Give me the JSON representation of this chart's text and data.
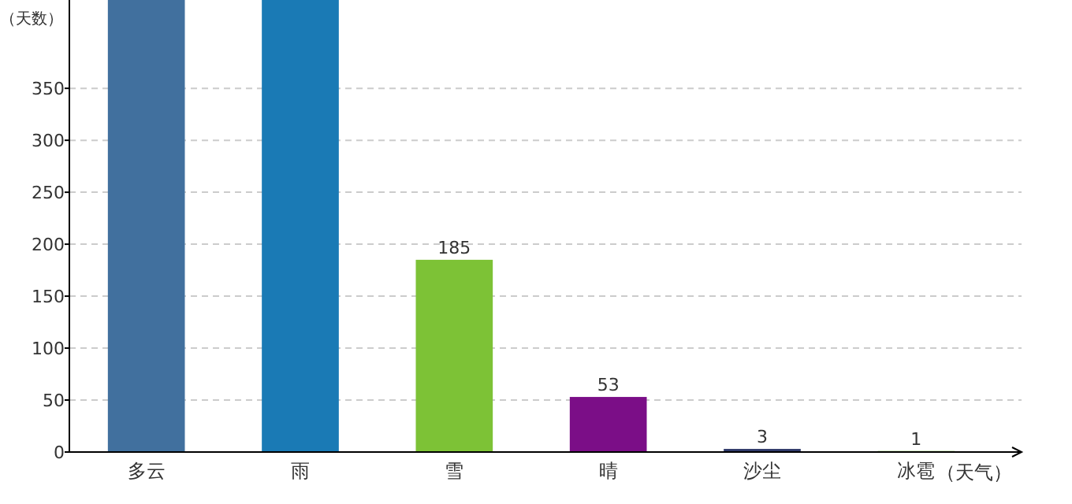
{
  "chart_data": {
    "type": "bar",
    "xlabel": "（天气）",
    "ylabel": "（天数）",
    "categories": [
      "多云",
      "雨",
      "雪",
      "晴",
      "沙尘",
      "冰雹"
    ],
    "values": [
      435,
      435,
      185,
      53,
      3,
      1
    ],
    "colors": [
      "#41709e",
      "#1a7ab5",
      "#7dc236",
      "#7b0e87",
      "#2f3a6a",
      "#7db850"
    ],
    "value_labels": [
      null,
      null,
      "185",
      "53",
      "3",
      "1"
    ],
    "ylim": [
      0,
      435
    ],
    "yticks": [
      0,
      50,
      100,
      150,
      200,
      250,
      300,
      350
    ],
    "grid": "y"
  }
}
